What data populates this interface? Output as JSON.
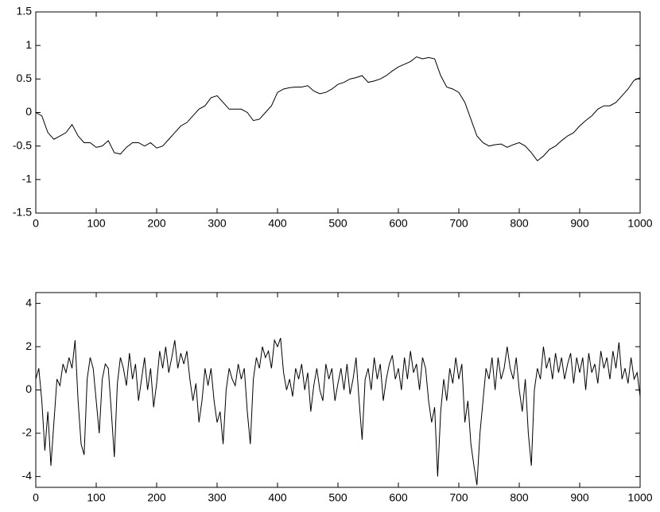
{
  "chart_data": [
    {
      "type": "line",
      "x": [
        0,
        10,
        20,
        30,
        40,
        50,
        60,
        70,
        80,
        90,
        100,
        110,
        120,
        130,
        140,
        150,
        160,
        170,
        180,
        190,
        200,
        210,
        220,
        230,
        240,
        250,
        260,
        270,
        280,
        290,
        300,
        310,
        320,
        330,
        340,
        350,
        360,
        370,
        380,
        390,
        400,
        410,
        420,
        430,
        440,
        450,
        460,
        470,
        480,
        490,
        500,
        510,
        520,
        530,
        540,
        550,
        560,
        570,
        580,
        590,
        600,
        610,
        620,
        630,
        640,
        650,
        660,
        670,
        680,
        690,
        700,
        710,
        720,
        730,
        740,
        750,
        760,
        770,
        780,
        790,
        800,
        810,
        820,
        830,
        840,
        850,
        860,
        870,
        880,
        890,
        900,
        910,
        920,
        930,
        940,
        950,
        960,
        970,
        980,
        990,
        1000
      ],
      "values": [
        0.0,
        -0.05,
        -0.3,
        -0.4,
        -0.35,
        -0.3,
        -0.18,
        -0.35,
        -0.45,
        -0.45,
        -0.52,
        -0.5,
        -0.42,
        -0.6,
        -0.62,
        -0.52,
        -0.45,
        -0.45,
        -0.5,
        -0.45,
        -0.53,
        -0.5,
        -0.4,
        -0.3,
        -0.2,
        -0.15,
        -0.05,
        0.05,
        0.1,
        0.22,
        0.25,
        0.15,
        0.05,
        0.05,
        0.05,
        0.0,
        -0.12,
        -0.1,
        0.0,
        0.1,
        0.3,
        0.35,
        0.37,
        0.38,
        0.38,
        0.4,
        0.32,
        0.28,
        0.3,
        0.35,
        0.42,
        0.45,
        0.5,
        0.52,
        0.55,
        0.45,
        0.47,
        0.5,
        0.55,
        0.62,
        0.68,
        0.72,
        0.76,
        0.83,
        0.8,
        0.82,
        0.8,
        0.55,
        0.38,
        0.35,
        0.3,
        0.15,
        -0.1,
        -0.35,
        -0.45,
        -0.5,
        -0.48,
        -0.47,
        -0.52,
        -0.48,
        -0.45,
        -0.5,
        -0.6,
        -0.72,
        -0.65,
        -0.55,
        -0.5,
        -0.42,
        -0.35,
        -0.3,
        -0.2,
        -0.12,
        -0.05,
        0.05,
        0.1,
        0.1,
        0.15,
        0.25,
        0.35,
        0.48,
        0.52
      ],
      "color": "#000000",
      "xlim": [
        0,
        1000
      ],
      "xticks": [
        0,
        100,
        200,
        300,
        400,
        500,
        600,
        700,
        800,
        900,
        1000
      ],
      "ylim": [
        -1.5,
        1.5
      ],
      "yticks": [
        -1.5,
        -1,
        -0.5,
        0,
        0.5,
        1,
        1.5
      ]
    },
    {
      "type": "line",
      "x": [
        0,
        5,
        10,
        15,
        20,
        25,
        30,
        35,
        40,
        45,
        50,
        55,
        60,
        65,
        70,
        75,
        80,
        85,
        90,
        95,
        100,
        105,
        110,
        115,
        120,
        125,
        130,
        135,
        140,
        145,
        150,
        155,
        160,
        165,
        170,
        175,
        180,
        185,
        190,
        195,
        200,
        205,
        210,
        215,
        220,
        225,
        230,
        235,
        240,
        245,
        250,
        255,
        260,
        265,
        270,
        275,
        280,
        285,
        290,
        295,
        300,
        305,
        310,
        315,
        320,
        325,
        330,
        335,
        340,
        345,
        350,
        355,
        360,
        365,
        370,
        375,
        380,
        385,
        390,
        395,
        400,
        405,
        410,
        415,
        420,
        425,
        430,
        435,
        440,
        445,
        450,
        455,
        460,
        465,
        470,
        475,
        480,
        485,
        490,
        495,
        500,
        505,
        510,
        515,
        520,
        525,
        530,
        535,
        540,
        545,
        550,
        555,
        560,
        565,
        570,
        575,
        580,
        585,
        590,
        595,
        600,
        605,
        610,
        615,
        620,
        625,
        630,
        635,
        640,
        645,
        650,
        655,
        660,
        665,
        670,
        675,
        680,
        685,
        690,
        695,
        700,
        705,
        710,
        715,
        720,
        725,
        730,
        735,
        740,
        745,
        750,
        755,
        760,
        765,
        770,
        775,
        780,
        785,
        790,
        795,
        800,
        805,
        810,
        815,
        820,
        825,
        830,
        835,
        840,
        845,
        850,
        855,
        860,
        865,
        870,
        875,
        880,
        885,
        890,
        895,
        900,
        905,
        910,
        915,
        920,
        925,
        930,
        935,
        940,
        945,
        950,
        955,
        960,
        965,
        970,
        975,
        980,
        985,
        990,
        995,
        1000
      ],
      "values": [
        0.5,
        1.0,
        -0.5,
        -2.8,
        -1.0,
        -3.5,
        -1.5,
        0.5,
        0.2,
        1.2,
        0.8,
        1.5,
        1.0,
        2.3,
        -0.5,
        -2.5,
        -3.0,
        0.5,
        1.5,
        1.0,
        -0.5,
        -2.0,
        0.5,
        1.2,
        1.0,
        -1.0,
        -3.1,
        0.3,
        1.5,
        1.0,
        0.2,
        1.7,
        0.5,
        1.2,
        -0.5,
        0.5,
        1.5,
        0.0,
        1.0,
        -0.8,
        0.3,
        1.8,
        1.0,
        2.0,
        0.8,
        1.5,
        2.3,
        1.0,
        1.7,
        1.2,
        1.8,
        0.5,
        -0.5,
        0.3,
        -1.5,
        -0.5,
        1.0,
        0.2,
        1.0,
        -0.5,
        -1.5,
        -1.0,
        -2.5,
        0.0,
        1.0,
        0.5,
        0.2,
        1.2,
        0.5,
        1.0,
        -1.0,
        -2.5,
        0.5,
        1.5,
        1.0,
        2.0,
        1.5,
        1.8,
        1.0,
        2.3,
        2.0,
        2.4,
        0.8,
        0.0,
        0.5,
        -0.3,
        1.0,
        0.5,
        1.2,
        0.0,
        0.8,
        -1.0,
        0.2,
        1.0,
        0.0,
        -0.5,
        1.2,
        0.5,
        1.0,
        -0.5,
        0.3,
        1.0,
        0.0,
        1.2,
        -0.2,
        0.5,
        1.5,
        -0.5,
        -2.3,
        0.5,
        1.0,
        0.0,
        1.5,
        0.5,
        1.2,
        -0.5,
        0.5,
        1.2,
        1.6,
        0.5,
        1.0,
        0.0,
        1.5,
        0.5,
        1.8,
        0.8,
        1.2,
        0.0,
        1.5,
        1.0,
        -0.5,
        -1.5,
        -0.8,
        -4.0,
        -1.0,
        0.5,
        -0.5,
        1.0,
        0.3,
        1.5,
        0.5,
        1.2,
        -1.5,
        -0.5,
        -2.5,
        -3.5,
        -4.4,
        -2.0,
        -0.5,
        1.0,
        0.5,
        1.5,
        0.0,
        1.5,
        0.5,
        1.0,
        2.0,
        1.0,
        0.5,
        1.5,
        0.0,
        -1.0,
        0.5,
        -2.0,
        -3.5,
        0.0,
        1.0,
        0.5,
        2.0,
        1.0,
        1.5,
        0.5,
        1.7,
        0.8,
        1.5,
        0.5,
        1.2,
        1.7,
        0.3,
        1.5,
        0.8,
        1.5,
        0.0,
        1.7,
        0.8,
        1.2,
        0.3,
        1.8,
        1.0,
        1.5,
        0.5,
        1.8,
        1.0,
        2.2,
        0.5,
        1.0,
        0.3,
        1.5,
        0.5,
        0.8,
        -0.3
      ],
      "color": "#000000",
      "xlim": [
        0,
        1000
      ],
      "xticks": [
        0,
        100,
        200,
        300,
        400,
        500,
        600,
        700,
        800,
        900,
        1000
      ],
      "ylim": [
        -4.5,
        4.5
      ],
      "yticks": [
        -4,
        -2,
        0,
        2,
        4
      ]
    }
  ]
}
